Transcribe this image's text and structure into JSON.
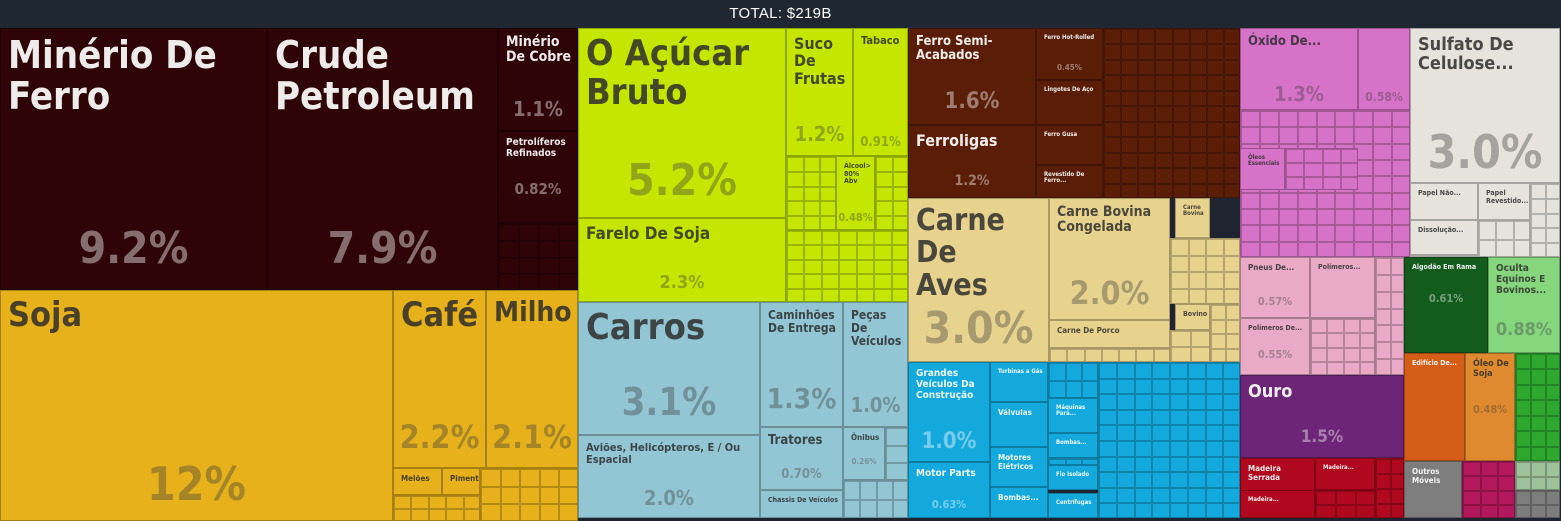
{
  "header": {
    "total": "TOTAL: $219B"
  },
  "chart_data": {
    "type": "treemap",
    "total": "$219B",
    "tiles": [
      {
        "key": "minerio",
        "name": "Minério De Ferro",
        "share": 9.2,
        "color": "#2f0406",
        "label": "Minério De\nFerro",
        "pct": "9.2%"
      },
      {
        "key": "crude",
        "name": "Crude Petroleum",
        "share": 7.9,
        "color": "#2f0406",
        "label": "Crude\nPetroleum",
        "pct": "7.9%"
      },
      {
        "key": "cobre",
        "name": "Minério De Cobre",
        "share": 1.1,
        "color": "#2f0406",
        "label": "Minério\nDe Cobre",
        "pct": "1.1%"
      },
      {
        "key": "petroliferos",
        "name": "Petrolíferos Refinados",
        "share": 0.82,
        "color": "#2f0406",
        "label": "Petrolíferos\nRefinados",
        "pct": "0.82%"
      },
      {
        "key": "acucar",
        "name": "O Açúcar Bruto",
        "share": 5.2,
        "color": "#c4e600",
        "label": "O Açúcar\nBruto",
        "pct": "5.2%"
      },
      {
        "key": "suco",
        "name": "Suco De Frutas",
        "share": 1.2,
        "color": "#c4e600",
        "label": "Suco\nDe\nFrutas",
        "pct": "1.2%"
      },
      {
        "key": "tabaco",
        "name": "Tabaco",
        "share": 0.91,
        "color": "#c4e600",
        "label": "Tabaco",
        "pct": "0.91%"
      },
      {
        "key": "alcool",
        "name": "Álcool > 80% Abv",
        "share": 0.48,
        "color": "#c4e600",
        "label": "Álcool>\n80%\nAbv",
        "pct": "0.48%"
      },
      {
        "key": "farelo",
        "name": "Farelo De Soja",
        "share": 2.3,
        "color": "#c4e600",
        "label": "Farelo De Soja",
        "pct": "2.3%"
      },
      {
        "key": "soja",
        "name": "Soja",
        "share": 12,
        "color": "#e6b11a",
        "label": "Soja",
        "pct": "12%"
      },
      {
        "key": "cafe",
        "name": "Café",
        "share": 2.2,
        "color": "#e6b11a",
        "label": "Café",
        "pct": "2.2%"
      },
      {
        "key": "milho",
        "name": "Milho",
        "share": 2.1,
        "color": "#e6b11a",
        "label": "Milho",
        "pct": "2.1%"
      },
      {
        "key": "meloes",
        "name": "Melões",
        "color": "#e6b11a",
        "label": "Melões"
      },
      {
        "key": "pimenta",
        "name": "Pimenta",
        "color": "#e6b11a",
        "label": "Pimenta"
      },
      {
        "key": "carros",
        "name": "Carros",
        "share": 3.1,
        "color": "#92c6d4",
        "label": "Carros",
        "pct": "3.1%"
      },
      {
        "key": "caminhoes",
        "name": "Caminhões De Entrega",
        "share": 1.3,
        "color": "#92c6d4",
        "label": "Caminhões\nDe Entrega",
        "pct": "1.3%"
      },
      {
        "key": "pecas",
        "name": "Peças De Veículos",
        "share": 1.0,
        "color": "#92c6d4",
        "label": "Peças De\nVeículos",
        "pct": "1.0%"
      },
      {
        "key": "avioes",
        "name": "Aviões, Helicópteros, E / Ou Espacial",
        "share": 2.0,
        "color": "#92c6d4",
        "label": "Aviões, Helicópteros, E / Ou Espacial",
        "pct": "2.0%"
      },
      {
        "key": "tratores",
        "name": "Tratores",
        "share": 0.7,
        "color": "#92c6d4",
        "label": "Tratores",
        "pct": "0.70%"
      },
      {
        "key": "onibus",
        "name": "Ônibus",
        "share": 0.26,
        "color": "#92c6d4",
        "label": "Ônibus",
        "pct": "0.26%"
      },
      {
        "key": "chassis",
        "name": "Chassis De Veículos",
        "color": "#92c6d4",
        "label": "Chassis De Veículos"
      },
      {
        "key": "ferrosemi",
        "name": "Ferro Semi-Acabados",
        "share": 1.6,
        "color": "#5a1e08",
        "label": "Ferro Semi-\nAcabados",
        "pct": "1.6%"
      },
      {
        "key": "ferroligas",
        "name": "Ferroligas",
        "share": 1.2,
        "color": "#5a1e08",
        "label": "Ferroligas",
        "pct": "1.2%"
      },
      {
        "key": "hotrolled",
        "name": "Ferro Hot-Rolled",
        "share": 0.45,
        "color": "#5a1e08",
        "label": "Ferro Hot-Rolled",
        "pct": "0.45%"
      },
      {
        "key": "lingotes",
        "name": "Lingotes De Aço",
        "color": "#5a1e08",
        "label": "Lingotes De Aço"
      },
      {
        "key": "gusa",
        "name": "Ferro Gusa",
        "color": "#5a1e08",
        "label": "Ferro Gusa"
      },
      {
        "key": "revestido",
        "name": "Revestido De Ferro...",
        "color": "#5a1e08",
        "label": "Revestido De\nFerro..."
      },
      {
        "key": "aves",
        "name": "Carne De Aves",
        "share": 3.0,
        "color": "#e8d38e",
        "label": "Carne De\nAves",
        "pct": "3.0%"
      },
      {
        "key": "bovina",
        "name": "Carne Bovina Congelada",
        "share": 2.0,
        "color": "#e8d38e",
        "label": "Carne Bovina\nCongelada",
        "pct": "2.0%"
      },
      {
        "key": "bovina2",
        "name": "Carne Bovina",
        "color": "#e8d38e",
        "label": "Carne\nBovina"
      },
      {
        "key": "bovino",
        "name": "Bovino",
        "color": "#e8d38e",
        "label": "Bovino"
      },
      {
        "key": "porco",
        "name": "Carne De Porco",
        "color": "#e8d38e",
        "label": "Carne De Porco"
      },
      {
        "key": "grandes",
        "name": "Grandes Veículos Da Construção",
        "share": 1.0,
        "color": "#14a9dc",
        "label": "Grandes\nVeículos Da\nConstrução",
        "pct": "1.0%"
      },
      {
        "key": "motorparts",
        "name": "Motor Parts",
        "share": 0.63,
        "color": "#14a9dc",
        "label": "Motor Parts",
        "pct": "0.63%"
      },
      {
        "key": "turbinas",
        "name": "Turbinas a Gás",
        "color": "#14a9dc",
        "label": "Turbinas a Gás"
      },
      {
        "key": "valvulas",
        "name": "Válvulas",
        "color": "#14a9dc",
        "label": "Válvulas"
      },
      {
        "key": "motores",
        "name": "Motores Elétricos",
        "color": "#14a9dc",
        "label": "Motores\nElétricos"
      },
      {
        "key": "bombas",
        "name": "Bombas...",
        "color": "#14a9dc",
        "label": "Bombas..."
      },
      {
        "key": "maquinas",
        "name": "Máquinas Para...",
        "color": "#14a9dc",
        "label": "Máquinas\nPara..."
      },
      {
        "key": "bombas2",
        "name": "Bombas...",
        "color": "#14a9dc",
        "label": "Bombas..."
      },
      {
        "key": "fioisolado",
        "name": "Fio Isolado",
        "color": "#14a9dc",
        "label": "Fio Isolado"
      },
      {
        "key": "centrifugas",
        "name": "Centrífugas",
        "color": "#14a9dc",
        "label": "Centrífugas"
      },
      {
        "key": "oxido",
        "name": "Óxido De...",
        "share": 1.3,
        "color": "#d672c8",
        "label": "Óxido De...",
        "pct": "1.3%"
      },
      {
        "key": "oxido2",
        "name": "",
        "share": 0.58,
        "color": "#d672c8",
        "label": "",
        "pct": "0.58%"
      },
      {
        "key": "oleos",
        "name": "Óleos Essenciais",
        "color": "#d672c8",
        "label": "Óleos\nEssenciais"
      },
      {
        "key": "sulfato",
        "name": "Sulfato De Celulose...",
        "share": 3.0,
        "color": "#e6e3dc",
        "label": "Sulfato De\nCelulose...",
        "pct": "3.0%"
      },
      {
        "key": "papelnao",
        "name": "Papel Não...",
        "color": "#e6e3dc",
        "label": "Papel Não..."
      },
      {
        "key": "papelrev",
        "name": "Papel Revestido...",
        "color": "#e6e3dc",
        "label": "Papel\nRevestido..."
      },
      {
        "key": "dissolucao",
        "name": "Dissolução...",
        "color": "#e6e3dc",
        "label": "Dissolução..."
      },
      {
        "key": "pneus",
        "name": "Pneus De...",
        "share": 0.57,
        "color": "#e8aac6",
        "label": "Pneus De...",
        "pct": "0.57%"
      },
      {
        "key": "polimeros",
        "name": "Polímeros...",
        "color": "#e8aac6",
        "label": "Polímeros..."
      },
      {
        "key": "polimerosde",
        "name": "Polímeros De...",
        "share": 0.55,
        "color": "#e8aac6",
        "label": "Polímeros De...",
        "pct": "0.55%"
      },
      {
        "key": "algodao",
        "name": "Algodão Em Rama",
        "share": 0.61,
        "color": "#145c1e",
        "label": "Algodão Em Rama",
        "pct": "0.61%"
      },
      {
        "key": "oculta",
        "name": "Oculta Equinos E Bovinos...",
        "share": 0.88,
        "color": "#86d67e",
        "label": "Oculta\nEquinos E\nBovinos...",
        "pct": "0.88%"
      },
      {
        "key": "ouro",
        "name": "Ouro",
        "share": 1.5,
        "color": "#6c2577",
        "label": "Ouro",
        "pct": "1.5%"
      },
      {
        "key": "edificio",
        "name": "Edifício De...",
        "color": "#d45d17",
        "label": "Edifício De..."
      },
      {
        "key": "oleosoja",
        "name": "Óleo De Soja",
        "share": 0.48,
        "color": "#e08a2f",
        "label": "Óleo De\nSoja",
        "pct": "0.48%"
      },
      {
        "key": "madeiraserrada",
        "name": "Madeira Serrada",
        "color": "#b0081e",
        "label": "Madeira Serrada"
      },
      {
        "key": "madeira2",
        "name": "Madeira...",
        "color": "#b0081e",
        "label": "Madeira..."
      },
      {
        "key": "madeira3",
        "name": "Madeira...",
        "color": "#b0081e",
        "label": "Madeira..."
      },
      {
        "key": "outros",
        "name": "Outros Móveis",
        "color": "#7d7d7d",
        "label": "Outros\nMóveis"
      }
    ]
  }
}
